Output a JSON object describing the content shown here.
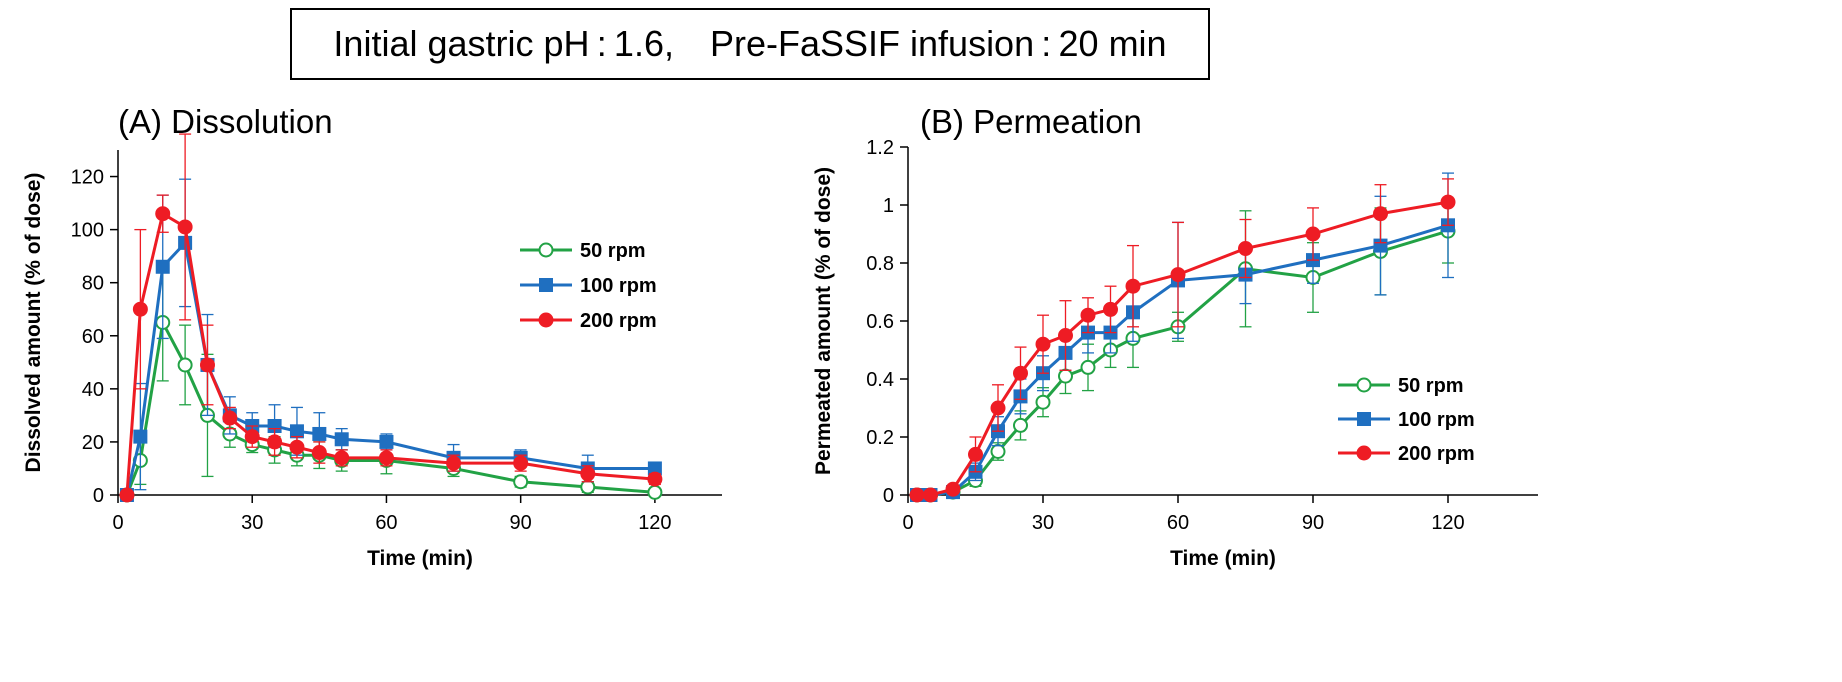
{
  "header": {
    "condition_text": "Initial gastric pH : 1.6, Pre-FaSSIF infusion : 20 min"
  },
  "series_styles": [
    {
      "name": "50 rpm",
      "color": "#22a245",
      "marker": "open-circle"
    },
    {
      "name": "100 rpm",
      "color": "#1f6fc0",
      "marker": "square"
    },
    {
      "name": "200 rpm",
      "color": "#ee1c24",
      "marker": "circle"
    }
  ],
  "chart_data": [
    {
      "type": "line",
      "title": "(A) Dissolution",
      "xlabel": "Time  (min)",
      "ylabel": "Dissolved  amount  (% of dose)",
      "xlim": [
        0,
        135
      ],
      "ylim": [
        0,
        130
      ],
      "xticks": [
        0,
        30,
        60,
        90,
        120
      ],
      "yticks": [
        0,
        20,
        40,
        60,
        80,
        100,
        120
      ],
      "ytick_labels": [
        "0",
        "20",
        "40",
        "60",
        "80",
        "100",
        "120"
      ],
      "legend_position": "right",
      "series": [
        {
          "name": "50 rpm",
          "x": [
            2,
            5,
            10,
            15,
            20,
            25,
            30,
            35,
            40,
            45,
            50,
            60,
            75,
            90,
            105,
            120
          ],
          "y": [
            0,
            13,
            65,
            49,
            30,
            23,
            19,
            17,
            15,
            15,
            13,
            13,
            10,
            5,
            3,
            1
          ],
          "err": [
            0,
            9,
            22,
            15,
            23,
            5,
            3,
            5,
            4,
            5,
            4,
            5,
            3,
            2,
            2,
            1
          ]
        },
        {
          "name": "100 rpm",
          "x": [
            2,
            5,
            10,
            15,
            20,
            25,
            30,
            35,
            40,
            45,
            50,
            60,
            75,
            90,
            105,
            120
          ],
          "y": [
            0,
            22,
            86,
            95,
            49,
            30,
            26,
            26,
            24,
            23,
            21,
            20,
            14,
            14,
            10,
            10
          ],
          "err": [
            0,
            20,
            27,
            24,
            19,
            7,
            5,
            8,
            9,
            8,
            4,
            3,
            5,
            3,
            5,
            2
          ]
        },
        {
          "name": "200 rpm",
          "x": [
            2,
            5,
            10,
            15,
            20,
            25,
            30,
            35,
            40,
            45,
            50,
            60,
            75,
            90,
            105,
            120
          ],
          "y": [
            0,
            70,
            106,
            101,
            49,
            29,
            22,
            20,
            18,
            16,
            14,
            14,
            12,
            12,
            8,
            6
          ],
          "err": [
            0,
            30,
            7,
            35,
            15,
            4,
            4,
            5,
            4,
            4,
            3,
            3,
            3,
            3,
            3,
            2
          ]
        }
      ]
    },
    {
      "type": "line",
      "title": "(B) Permeation",
      "xlabel": "Time  (min)",
      "ylabel": "Permeated amount  (% of dose)",
      "xlim": [
        0,
        140
      ],
      "ylim": [
        0,
        1.2
      ],
      "xticks": [
        0,
        30,
        60,
        90,
        120
      ],
      "yticks": [
        0,
        0.2,
        0.4,
        0.6,
        0.8,
        1,
        1.2
      ],
      "ytick_labels": [
        "0",
        "0.2",
        "0.4",
        "0.6",
        "0.8",
        "1",
        "1.2"
      ],
      "legend_position": "bottom-right",
      "series": [
        {
          "name": "50 rpm",
          "x": [
            2,
            5,
            10,
            15,
            20,
            25,
            30,
            35,
            40,
            45,
            50,
            60,
            75,
            90,
            105,
            120
          ],
          "y": [
            0,
            0,
            0.01,
            0.05,
            0.15,
            0.24,
            0.32,
            0.41,
            0.44,
            0.5,
            0.54,
            0.58,
            0.78,
            0.75,
            0.84,
            0.91
          ],
          "err": [
            0,
            0,
            0,
            0.02,
            0.03,
            0.05,
            0.05,
            0.06,
            0.08,
            0.06,
            0.1,
            0.05,
            0.2,
            0.12,
            0.15,
            0.11
          ]
        },
        {
          "name": "100 rpm",
          "x": [
            2,
            5,
            10,
            15,
            20,
            25,
            30,
            35,
            40,
            45,
            50,
            60,
            75,
            90,
            105,
            120
          ],
          "y": [
            0,
            0,
            0.01,
            0.08,
            0.22,
            0.34,
            0.42,
            0.49,
            0.56,
            0.56,
            0.63,
            0.74,
            0.76,
            0.81,
            0.86,
            0.93
          ],
          "err": [
            0,
            0,
            0,
            0.03,
            0.05,
            0.06,
            0.06,
            0.06,
            0.07,
            0.07,
            0.1,
            0.2,
            0.1,
            0.08,
            0.17,
            0.18
          ]
        },
        {
          "name": "200 rpm",
          "x": [
            2,
            5,
            10,
            15,
            20,
            25,
            30,
            35,
            40,
            45,
            50,
            60,
            75,
            90,
            105,
            120
          ],
          "y": [
            0,
            0,
            0.02,
            0.14,
            0.3,
            0.42,
            0.52,
            0.55,
            0.62,
            0.64,
            0.72,
            0.76,
            0.85,
            0.9,
            0.97,
            1.01
          ],
          "err": [
            0,
            0,
            0.01,
            0.06,
            0.08,
            0.09,
            0.1,
            0.12,
            0.06,
            0.08,
            0.14,
            0.18,
            0.1,
            0.09,
            0.1,
            0.08
          ]
        }
      ]
    }
  ]
}
